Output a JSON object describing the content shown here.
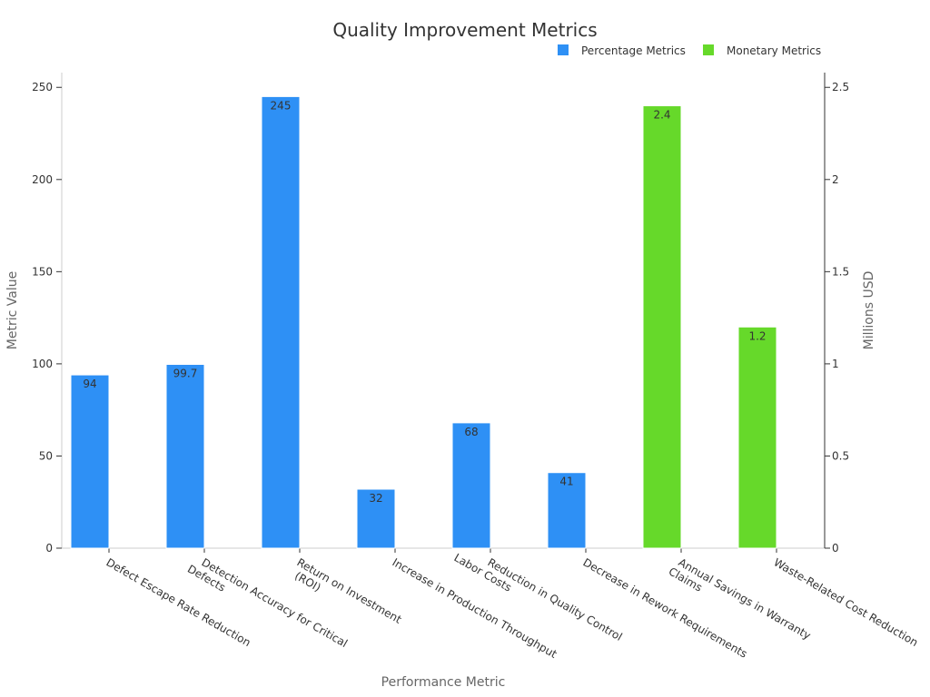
{
  "chart_data": {
    "type": "bar",
    "title": "Quality Improvement Metrics",
    "xlabel": "Performance Metric",
    "ylabel": "Metric Value",
    "y2label": "Millions USD",
    "categories": [
      "Defect Escape Rate Reduction",
      "Detection Accuracy for Critical Defects",
      "Return on Investment (ROI)",
      "Increase in Production Throughput",
      "Reduction in Quality Control Labor Costs",
      "Decrease in Rework Requirements",
      "Annual Savings in Warranty Claims",
      "Waste-Related Cost Reduction"
    ],
    "category_lines": [
      [
        "Defect Escape Rate Reduction"
      ],
      [
        "Detection Accuracy for Critical",
        "Defects"
      ],
      [
        "Return on Investment",
        "(ROI)"
      ],
      [
        "Increase in Production Throughput"
      ],
      [
        "Reduction in Quality Control",
        "Labor Costs"
      ],
      [
        "Decrease in Rework Requirements"
      ],
      [
        "Annual Savings in Warranty",
        "Claims"
      ],
      [
        "Waste-Related Cost Reduction"
      ]
    ],
    "series": [
      {
        "name": "Percentage Metrics",
        "color": "#2E90F5",
        "axis": "left",
        "values": [
          94,
          99.7,
          245,
          32,
          68,
          41,
          null,
          null
        ]
      },
      {
        "name": "Monetary Metrics",
        "color": "#66D92A",
        "axis": "right",
        "values": [
          null,
          null,
          null,
          null,
          null,
          null,
          2.4,
          1.2
        ]
      }
    ],
    "ylim": [
      0,
      258
    ],
    "y2lim": [
      0,
      2.58
    ],
    "yticks": [
      0,
      50,
      100,
      150,
      200,
      250
    ],
    "y2ticks": [
      {
        "value": 0,
        "label": "0"
      },
      {
        "value": 0.5,
        "label": "0.5"
      },
      {
        "value": 1,
        "label": "1"
      },
      {
        "value": 1.5,
        "label": "1.5"
      },
      {
        "value": 2,
        "label": "2"
      },
      {
        "value": 2.5,
        "label": "2.5"
      }
    ],
    "legend_position": "top-right",
    "grid": false
  }
}
